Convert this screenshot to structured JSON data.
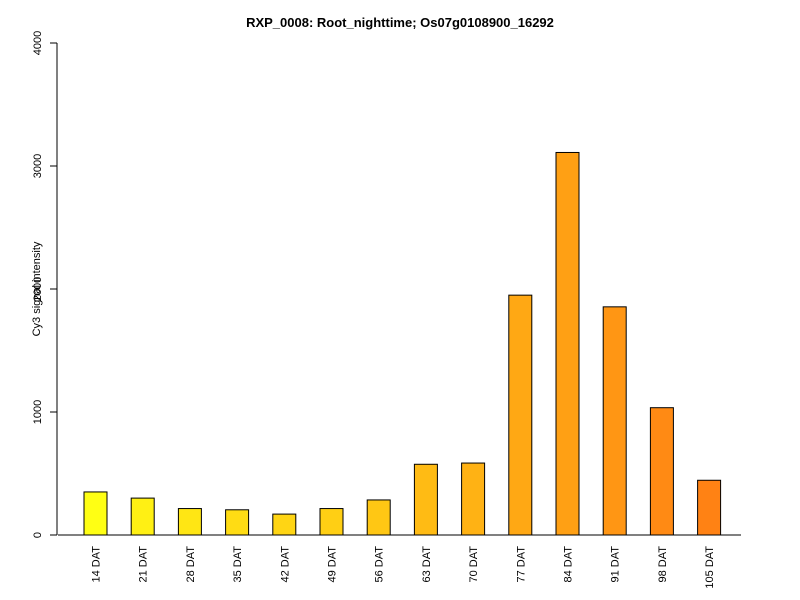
{
  "chart_data": {
    "type": "bar",
    "title": "RXP_0008: Root_nighttime; Os07g0108900_16292",
    "xlabel": "",
    "ylabel": "Cy3 signal intensity",
    "ylim": [
      0,
      4000
    ],
    "yticks": [
      0,
      1000,
      2000,
      3000,
      4000
    ],
    "categories": [
      "14 DAT",
      "21 DAT",
      "28 DAT",
      "35 DAT",
      "42 DAT",
      "49 DAT",
      "56 DAT",
      "63 DAT",
      "70 DAT",
      "77 DAT",
      "84 DAT",
      "91 DAT",
      "98 DAT",
      "105 DAT"
    ],
    "values": [
      350,
      300,
      215,
      205,
      170,
      215,
      285,
      575,
      585,
      1950,
      3110,
      1855,
      1035,
      445
    ],
    "colors": [
      "#FFFF14",
      "#FFF014",
      "#FFE614",
      "#FFDC14",
      "#FFD514",
      "#FFCF14",
      "#FFC714",
      "#FFBB14",
      "#FFB214",
      "#FFA814",
      "#FFA014",
      "#FF9614",
      "#FF8A14",
      "#FF8214"
    ],
    "grid": false,
    "legend": "none"
  }
}
